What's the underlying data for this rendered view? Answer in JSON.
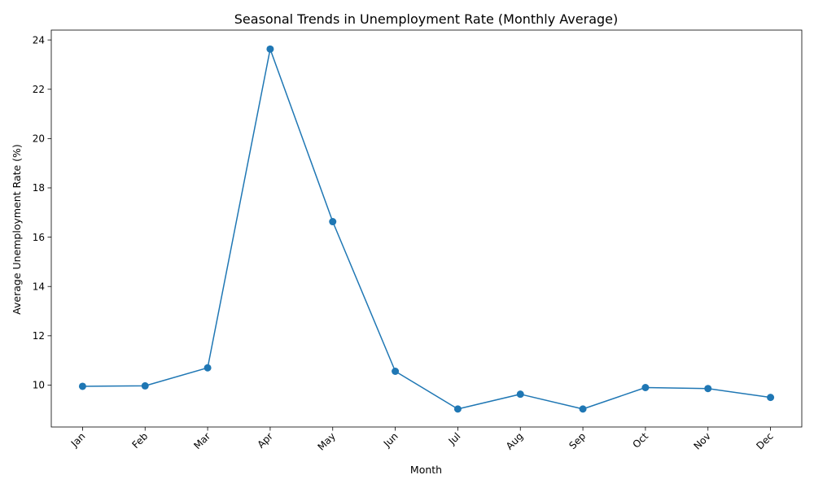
{
  "chart_data": {
    "type": "line",
    "title": "Seasonal Trends in Unemployment Rate (Monthly Average)",
    "xlabel": "Month",
    "ylabel": "Average Unemployment Rate (%)",
    "categories": [
      "Jan",
      "Feb",
      "Mar",
      "Apr",
      "May",
      "Jun",
      "Jul",
      "Aug",
      "Sep",
      "Oct",
      "Nov",
      "Dec"
    ],
    "series": [
      {
        "values": [
          9.95,
          9.97,
          10.7,
          23.63,
          16.63,
          10.56,
          9.03,
          9.63,
          9.03,
          9.9,
          9.86,
          9.5
        ]
      }
    ],
    "ylim": [
      8.3,
      24.4
    ],
    "yticks": [
      10,
      12,
      14,
      16,
      18,
      20,
      22,
      24
    ],
    "x_tick_rotation_deg": 45,
    "markers": "circle",
    "grid": false,
    "legend": "none",
    "color": "#1f77b4"
  }
}
